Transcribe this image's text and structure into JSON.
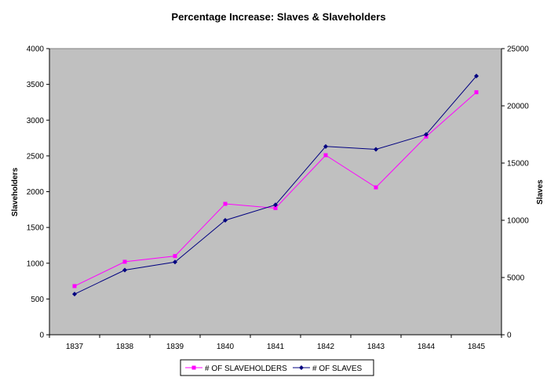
{
  "chart_data": {
    "type": "line",
    "title": "Percentage Increase: Slaves & Slaveholders",
    "categories": [
      "1837",
      "1838",
      "1839",
      "1840",
      "1841",
      "1842",
      "1843",
      "1844",
      "1845"
    ],
    "y_left": {
      "label": "Slaveholders",
      "range": [
        0,
        4000
      ],
      "ticks": [
        0,
        500,
        1000,
        1500,
        2000,
        2500,
        3000,
        3500,
        4000
      ]
    },
    "y_right": {
      "label": "Slaves",
      "range": [
        0,
        25000
      ],
      "ticks": [
        0,
        5000,
        10000,
        15000,
        20000,
        25000
      ]
    },
    "series": [
      {
        "name": "# OF SLAVEHOLDERS",
        "axis": "left",
        "color": "#ff00ff",
        "marker": "square",
        "values": [
          680,
          1020,
          1100,
          1830,
          1770,
          2510,
          2060,
          2770,
          3390
        ]
      },
      {
        "name": "# OF SLAVES",
        "axis": "right",
        "color": "#000080",
        "marker": "diamond",
        "values": [
          3550,
          5650,
          6350,
          10000,
          11350,
          16450,
          16200,
          17500,
          22600
        ]
      }
    ],
    "plot_background": "#c0c0c0",
    "legend": "bottom-center",
    "grid": false
  }
}
